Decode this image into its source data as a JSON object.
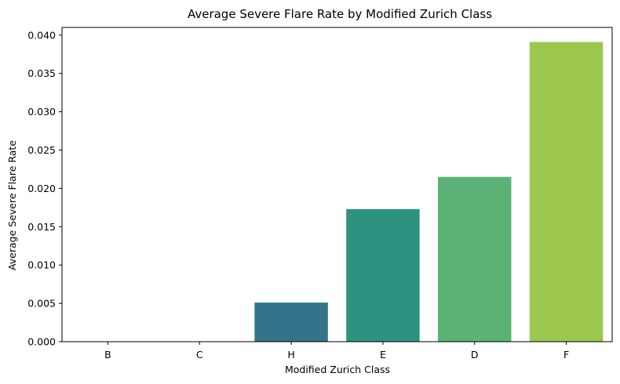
{
  "chart_data": {
    "type": "bar",
    "title": "Average Severe Flare Rate by Modified Zurich Class",
    "xlabel": "Modified Zurich Class",
    "ylabel": "Average Severe Flare Rate",
    "categories": [
      "B",
      "C",
      "H",
      "E",
      "D",
      "F"
    ],
    "values": [
      0.0,
      0.0,
      0.0051,
      0.0173,
      0.0215,
      0.0391
    ],
    "colors": [
      "#472c7a",
      "#3b518b",
      "#33748a",
      "#2e9280",
      "#5ab374",
      "#9bc74f"
    ],
    "ylim": [
      0,
      0.041
    ],
    "yticks": [
      0.0,
      0.005,
      0.01,
      0.015,
      0.02,
      0.025,
      0.03,
      0.035,
      0.04
    ],
    "ytick_labels": [
      "0.000",
      "0.005",
      "0.010",
      "0.015",
      "0.020",
      "0.025",
      "0.030",
      "0.035",
      "0.040"
    ],
    "grid": false,
    "legend": "none"
  }
}
